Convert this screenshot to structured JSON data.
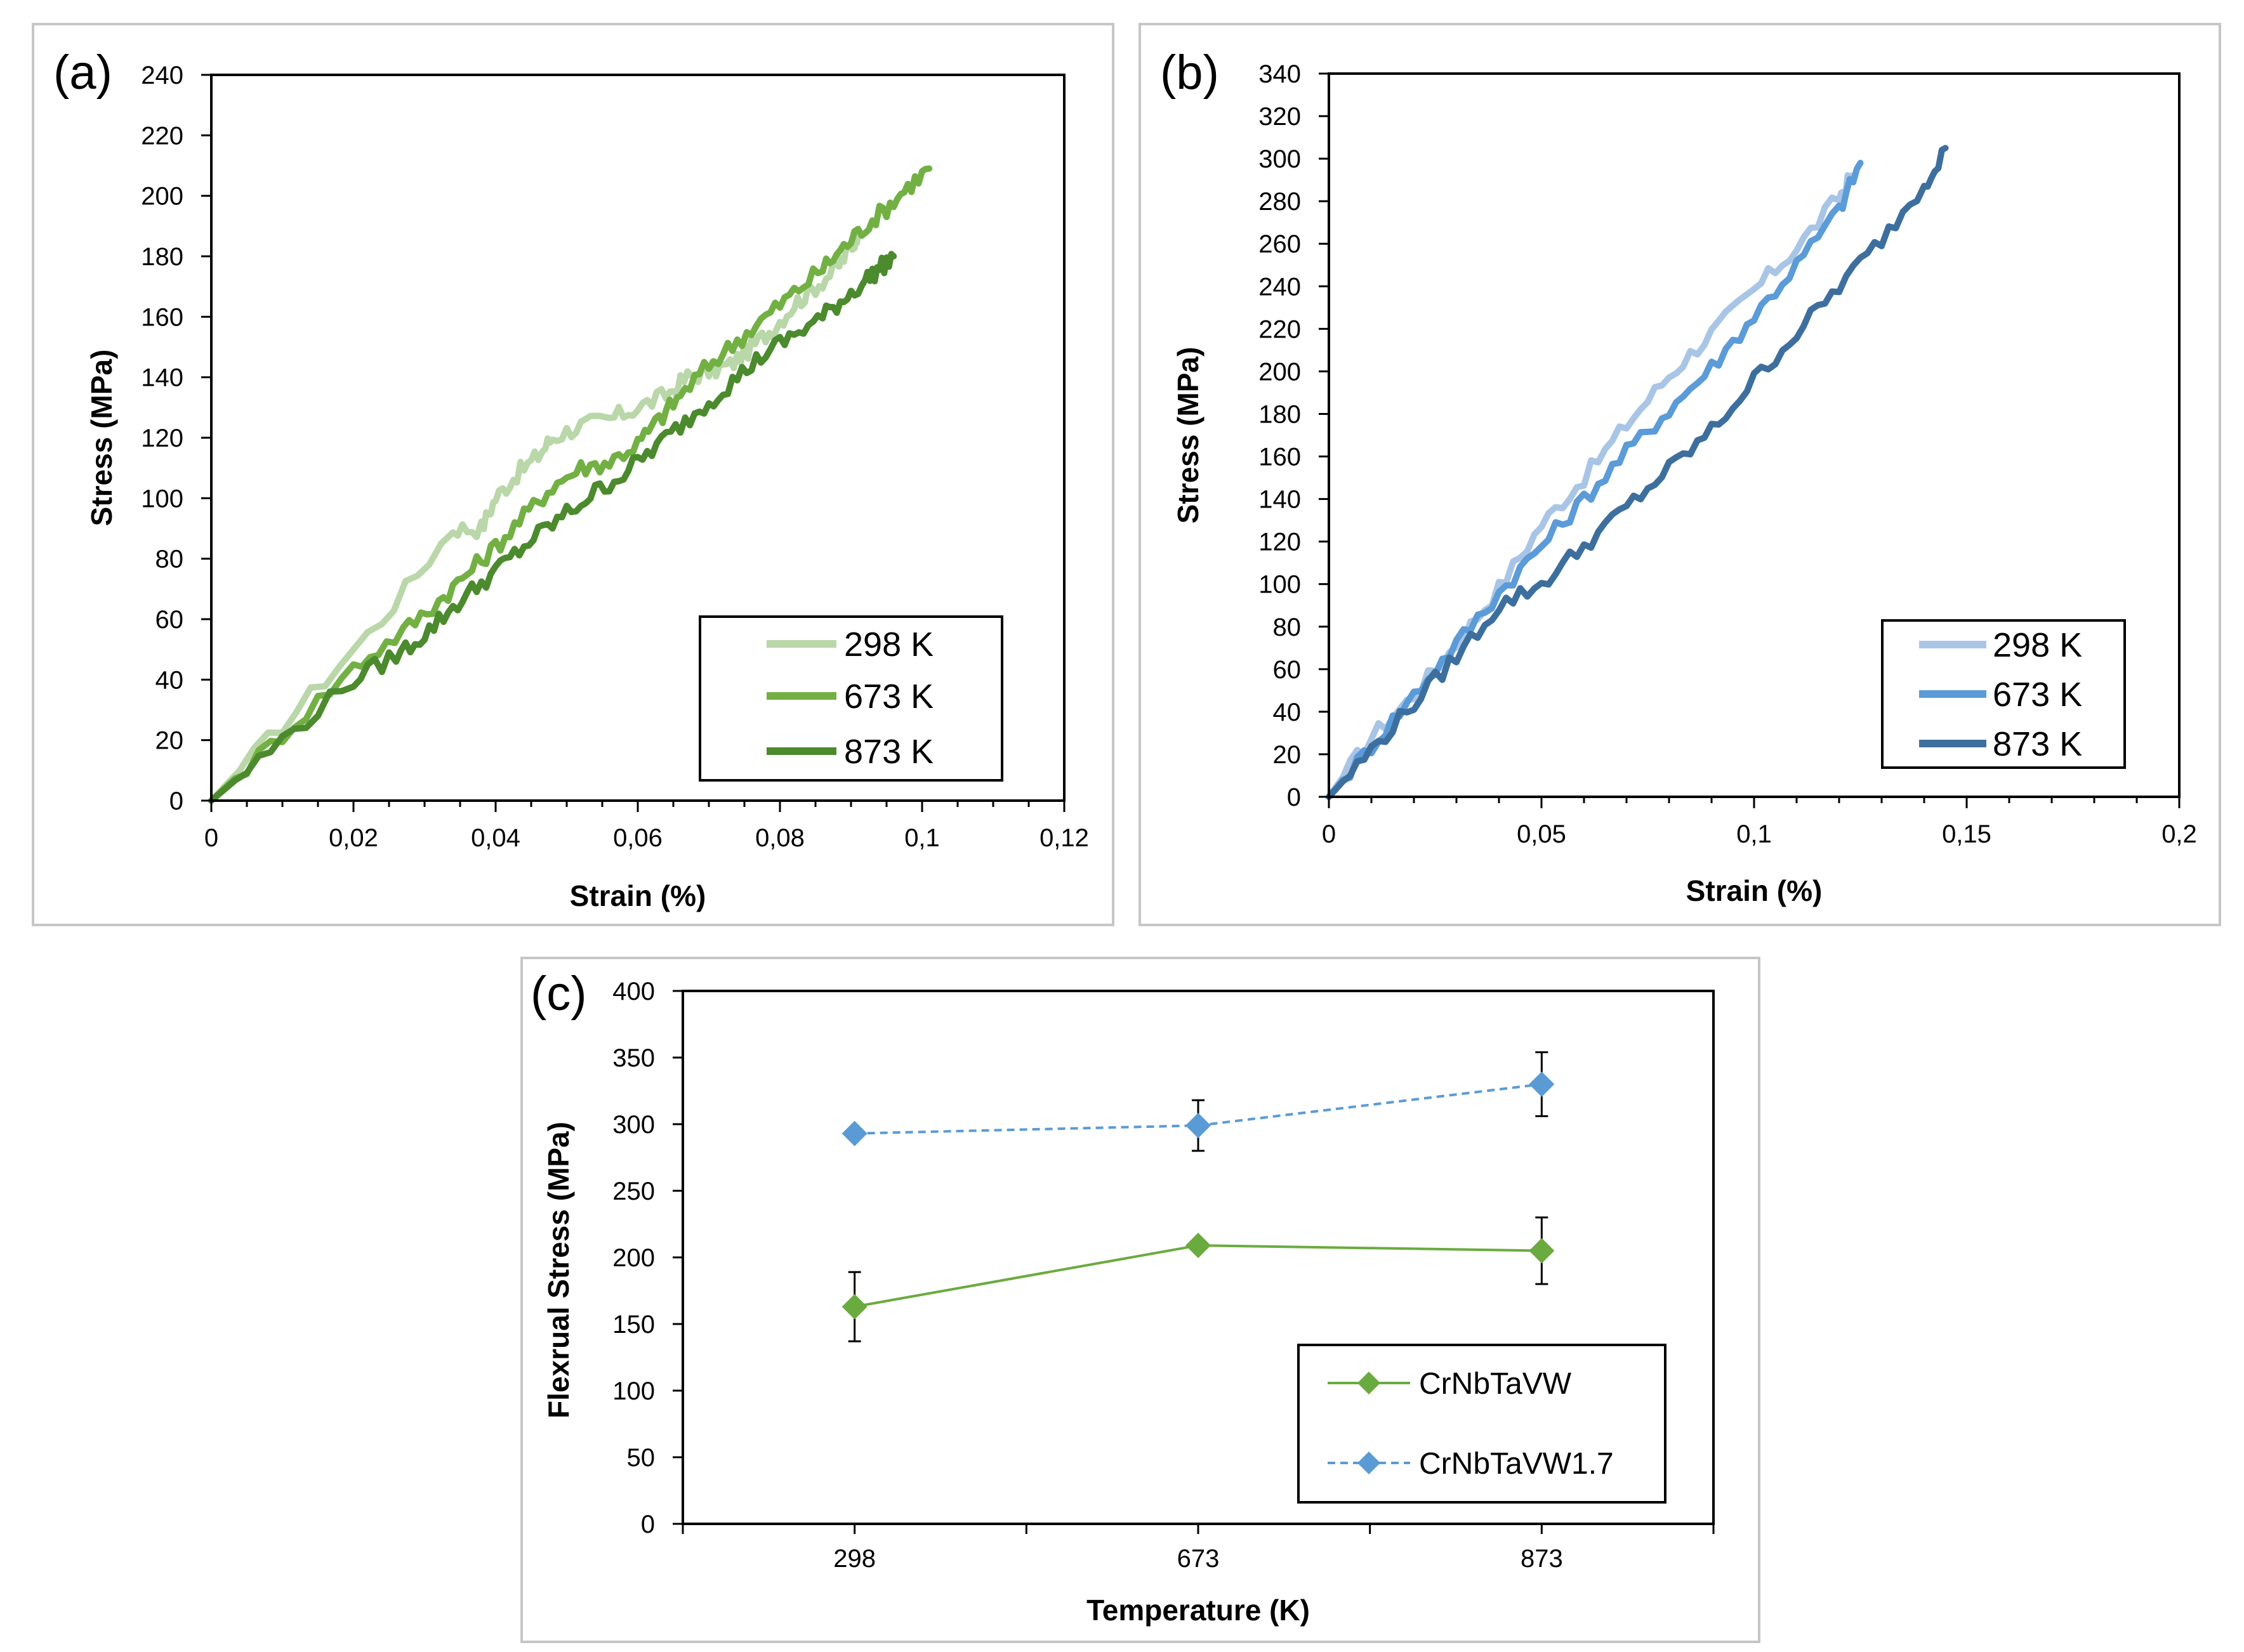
{
  "chart_data": [
    {
      "panel": "(a)",
      "type": "line",
      "xlabel": "Strain (%)",
      "ylabel": "Stress (MPa)",
      "xlim": [
        0,
        0.12
      ],
      "ylim": [
        0,
        240
      ],
      "xticks": [
        "0",
        "0,02",
        "0,04",
        "0,06",
        "0,08",
        "0,1",
        "0,12"
      ],
      "yticks": [
        "0",
        "20",
        "40",
        "60",
        "80",
        "100",
        "120",
        "140",
        "160",
        "180",
        "200",
        "220",
        "240"
      ],
      "legend_position": "bottom-right",
      "series": [
        {
          "name": "298 K",
          "color": "#b9d7a8",
          "x": [
            0,
            0.012,
            0.024,
            0.034,
            0.038,
            0.04,
            0.043,
            0.046,
            0.048,
            0.052,
            0.056,
            0.06,
            0.064,
            0.067,
            0.07,
            0.073,
            0.076,
            0.079,
            0.082,
            0.085,
            0.088,
            0.09,
            0.091
          ],
          "y": [
            0,
            30,
            60,
            90,
            90,
            100,
            108,
            114,
            120,
            124,
            126,
            130,
            134,
            140,
            142,
            144,
            150,
            156,
            164,
            170,
            176,
            183,
            188
          ]
        },
        {
          "name": "673 K",
          "color": "#72b043",
          "x": [
            0,
            0.01,
            0.02,
            0.027,
            0.032,
            0.036,
            0.04,
            0.044,
            0.048,
            0.052,
            0.056,
            0.06,
            0.063,
            0.066,
            0.07,
            0.074,
            0.078,
            0.082,
            0.086,
            0.089,
            0.092,
            0.095,
            0.098,
            0.101
          ],
          "y": [
            0,
            22,
            44,
            56,
            66,
            75,
            84,
            94,
            104,
            110,
            112,
            118,
            126,
            134,
            144,
            152,
            160,
            168,
            176,
            183,
            190,
            196,
            203,
            209
          ]
        },
        {
          "name": "873 K",
          "color": "#4b8a2d",
          "x": [
            0,
            0.01,
            0.02,
            0.026,
            0.03,
            0.034,
            0.038,
            0.042,
            0.046,
            0.05,
            0.054,
            0.058,
            0.062,
            0.066,
            0.07,
            0.074,
            0.078,
            0.082,
            0.086,
            0.089,
            0.092,
            0.094,
            0.096
          ],
          "y": [
            0,
            20,
            40,
            48,
            55,
            64,
            72,
            80,
            88,
            95,
            102,
            108,
            116,
            124,
            132,
            140,
            148,
            154,
            160,
            166,
            172,
            176,
            180
          ]
        }
      ]
    },
    {
      "panel": "(b)",
      "type": "line",
      "xlabel": "Strain (%)",
      "ylabel": "Stress (MPa)",
      "xlim": [
        0,
        0.2
      ],
      "ylim": [
        0,
        340
      ],
      "xticks": [
        "0",
        "0,05",
        "0,1",
        "0,15",
        "0,2"
      ],
      "yticks": [
        "0",
        "20",
        "40",
        "60",
        "80",
        "100",
        "120",
        "140",
        "160",
        "180",
        "200",
        "220",
        "240",
        "260",
        "280",
        "300",
        "320",
        "340"
      ],
      "legend_position": "bottom-right",
      "series": [
        {
          "name": "298 K",
          "color": "#a9c5e6",
          "x": [
            0,
            0.01,
            0.02,
            0.03,
            0.04,
            0.05,
            0.06,
            0.07,
            0.08,
            0.09,
            0.1,
            0.11,
            0.12,
            0.123
          ],
          "y": [
            0,
            28,
            48,
            72,
            98,
            128,
            150,
            175,
            198,
            218,
            238,
            258,
            282,
            292
          ]
        },
        {
          "name": "673 K",
          "color": "#5a9bd8",
          "x": [
            0,
            0.01,
            0.02,
            0.03,
            0.04,
            0.05,
            0.06,
            0.07,
            0.08,
            0.09,
            0.1,
            0.11,
            0.12,
            0.125
          ],
          "y": [
            0,
            24,
            48,
            72,
            96,
            118,
            140,
            162,
            182,
            202,
            226,
            250,
            276,
            298
          ]
        },
        {
          "name": "873 K",
          "color": "#3d6f9e",
          "x": [
            0,
            0.01,
            0.02,
            0.03,
            0.04,
            0.05,
            0.06,
            0.07,
            0.08,
            0.09,
            0.1,
            0.11,
            0.12,
            0.13,
            0.14,
            0.145
          ],
          "y": [
            0,
            22,
            44,
            66,
            90,
            100,
            118,
            136,
            154,
            172,
            196,
            218,
            240,
            262,
            288,
            305
          ]
        }
      ]
    },
    {
      "panel": "(c)",
      "type": "line",
      "xlabel": "Temperature (K)",
      "ylabel": "Flexrual Stress (MPa)",
      "categories": [
        "298",
        "673",
        "873"
      ],
      "ylim": [
        0,
        400
      ],
      "yticks": [
        "0",
        "50",
        "100",
        "150",
        "200",
        "250",
        "300",
        "350",
        "400"
      ],
      "legend_position": "bottom-right",
      "series": [
        {
          "name": "CrNbTaVW",
          "color": "#6aab3f",
          "dashed": false,
          "values": [
            163,
            209,
            205
          ],
          "error": [
            26,
            0,
            25
          ]
        },
        {
          "name": "CrNbTaVW1.7",
          "color": "#5b9bd5",
          "dashed": true,
          "values": [
            293,
            299,
            330
          ],
          "error": [
            0,
            19,
            24
          ]
        }
      ]
    }
  ]
}
